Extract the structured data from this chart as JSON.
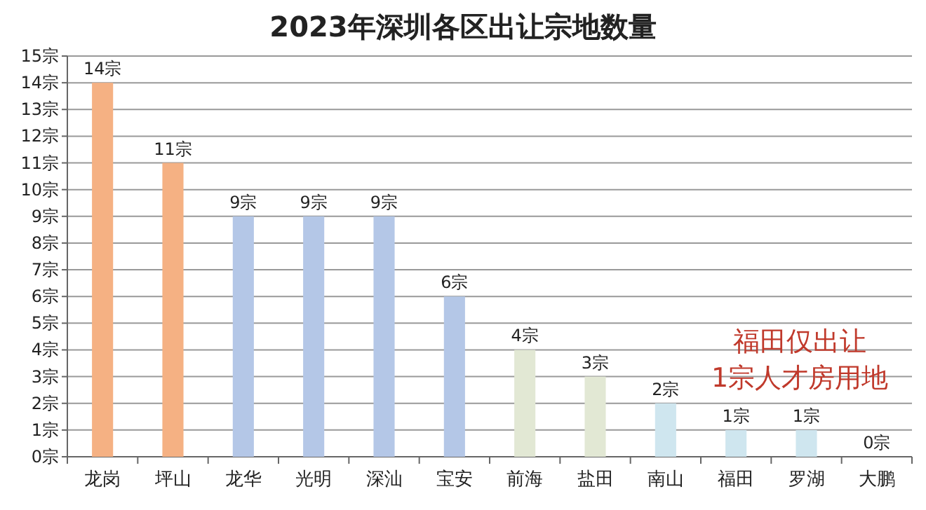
{
  "chart_data": {
    "type": "bar",
    "title": "2023年深圳各区出让宗地数量",
    "categories": [
      "龙岗",
      "坪山",
      "龙华",
      "光明",
      "深汕",
      "宝安",
      "前海",
      "盐田",
      "南山",
      "福田",
      "罗湖",
      "大鹏"
    ],
    "values": [
      14,
      11,
      9,
      9,
      9,
      6,
      4,
      3,
      2,
      1,
      1,
      0
    ],
    "colors": [
      "#f5b183",
      "#f5b183",
      "#b4c7e7",
      "#b4c7e7",
      "#b4c7e7",
      "#b4c7e7",
      "#e2e8d4",
      "#e2e8d4",
      "#cfe6ef",
      "#cfe6ef",
      "#cfe6ef",
      "#cfe6ef"
    ],
    "value_labels": [
      "14宗",
      "11宗",
      "9宗",
      "9宗",
      "9宗",
      "6宗",
      "4宗",
      "3宗",
      "2宗",
      "1宗",
      "1宗",
      "0宗"
    ],
    "ylim": [
      0,
      15
    ],
    "yticks": [
      {
        "value": 0,
        "label": "0宗"
      },
      {
        "value": 1,
        "label": "1宗"
      },
      {
        "value": 2,
        "label": "2宗"
      },
      {
        "value": 3,
        "label": "3宗"
      },
      {
        "value": 4,
        "label": "4宗"
      },
      {
        "value": 5,
        "label": "5宗"
      },
      {
        "value": 6,
        "label": "6宗"
      },
      {
        "value": 7,
        "label": "7宗"
      },
      {
        "value": 8,
        "label": "8宗"
      },
      {
        "value": 9,
        "label": "9宗"
      },
      {
        "value": 10,
        "label": "10宗"
      },
      {
        "value": 11,
        "label": "11宗"
      },
      {
        "value": 12,
        "label": "12宗"
      },
      {
        "value": 13,
        "label": "13宗"
      },
      {
        "value": 14,
        "label": "14宗"
      },
      {
        "value": 15,
        "label": "15宗"
      }
    ],
    "grid": "y",
    "annotations": [
      "福田仅出让\n1宗人才房用地"
    ]
  }
}
